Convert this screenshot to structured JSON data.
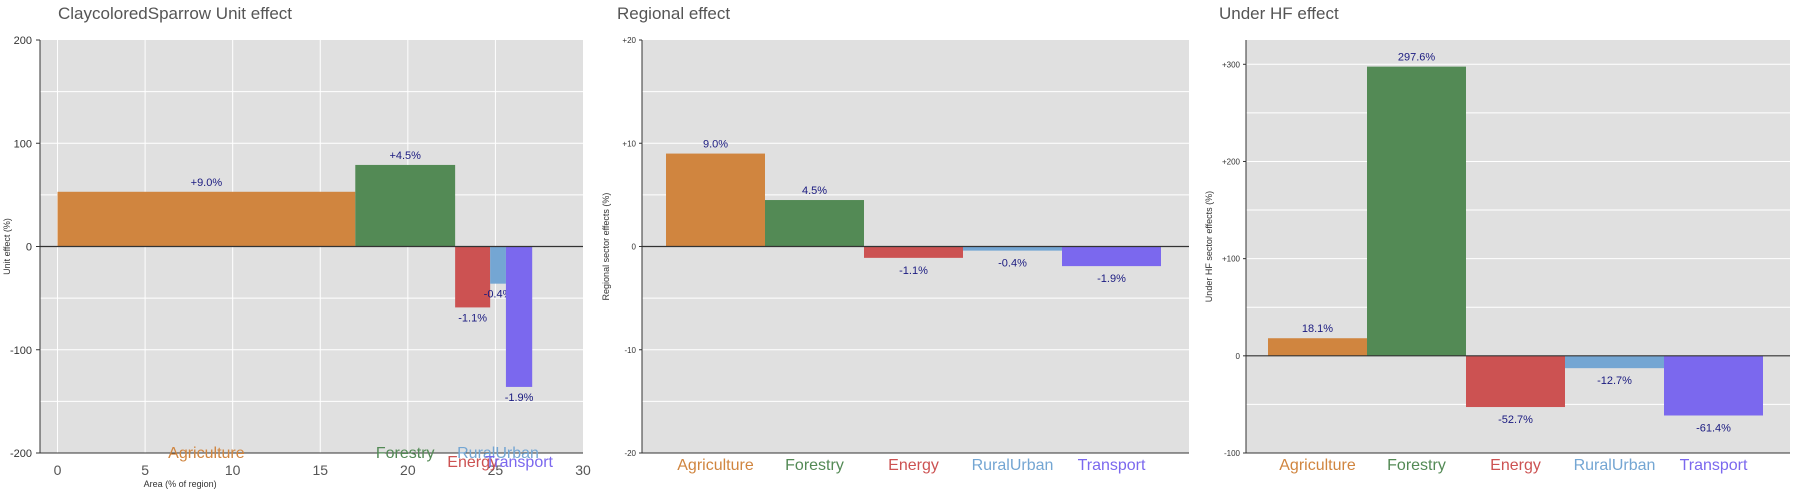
{
  "colors": {
    "Agriculture": "#D0853F",
    "Forestry": "#538A55",
    "Energy": "#CC5252",
    "RuralUrban": "#74A6D3",
    "Transport": "#7B68EE",
    "panel_bg": "#E0E0E0",
    "grid": "#FFFFFF",
    "data_label": "#1A1A80"
  },
  "chart_data": [
    {
      "type": "bar",
      "title": "ClaycoloredSparrow Unit effect",
      "xlabel": "Area (% of region)",
      "ylabel": "Unit effect (%)",
      "xlim": [
        -1,
        30
      ],
      "ylim": [
        -200,
        200
      ],
      "xticks": [
        "0",
        "5",
        "10",
        "15",
        "20",
        "25",
        "30"
      ],
      "yticks": [
        "200",
        "100",
        "0",
        "-100",
        "-200"
      ],
      "grid": true,
      "bars": [
        {
          "category": "Agriculture",
          "x0": 0,
          "x1": 17,
          "value": 53,
          "label": "+9.0%"
        },
        {
          "category": "Forestry",
          "x0": 17,
          "x1": 22.7,
          "value": 79,
          "label": "+4.5%"
        },
        {
          "category": "Energy",
          "x0": 22.7,
          "x1": 24.7,
          "value": -59,
          "label": "-1.1%"
        },
        {
          "category": "RuralUrban",
          "x0": 24.7,
          "x1": 25.6,
          "value": -36,
          "label": "-0.4%"
        },
        {
          "category": "Transport",
          "x0": 25.6,
          "x1": 27.1,
          "value": -136,
          "label": "-1.9%"
        }
      ],
      "category_labels": [
        {
          "category": "Agriculture",
          "x": 8.5
        },
        {
          "category": "Forestry",
          "x": 19.85
        },
        {
          "category": "Energy",
          "x": 23.7
        },
        {
          "category": "RuralUrban",
          "x": 25.15
        },
        {
          "category": "Transport",
          "x": 26.35
        }
      ]
    },
    {
      "type": "bar",
      "title": "Regional effect",
      "ylabel": "Regional sector effects (%)",
      "ylim": [
        -20,
        20
      ],
      "yticks": [
        "+20",
        "+10",
        "0",
        "-10",
        "-20"
      ],
      "grid": true,
      "categories": [
        "Agriculture",
        "Forestry",
        "Energy",
        "RuralUrban",
        "Transport"
      ],
      "values": [
        9.0,
        4.5,
        -1.1,
        -0.4,
        -1.9
      ],
      "labels": [
        "9.0%",
        "4.5%",
        "-1.1%",
        "-0.4%",
        "-1.9%"
      ]
    },
    {
      "type": "bar",
      "title": "Under HF effect",
      "ylabel": "Under HF sector effects (%)",
      "ylim": [
        -100,
        325
      ],
      "yticks": [
        "+300",
        "+200",
        "+100",
        "0",
        "-100"
      ],
      "grid": true,
      "categories": [
        "Agriculture",
        "Forestry",
        "Energy",
        "RuralUrban",
        "Transport"
      ],
      "values": [
        18.1,
        297.6,
        -52.7,
        -12.7,
        -61.4
      ],
      "labels": [
        "18.1%",
        "297.6%",
        "-52.7%",
        "-12.7%",
        "-61.4%"
      ]
    }
  ]
}
